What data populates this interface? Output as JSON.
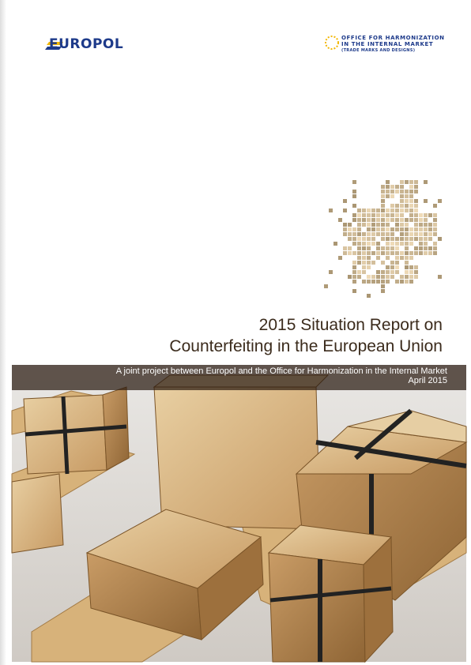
{
  "header": {
    "europol_logo": "EUROPOL",
    "ohim_logo": [
      "OFFICE FOR HARMONIZATION",
      "IN THE INTERNAL MARKET",
      "(TRADE MARKS AND DESIGNS)"
    ]
  },
  "title": [
    "2015 Situation Report on",
    "Counterfeiting in the European Union"
  ],
  "subtitle": "A joint project between Europol and the Office for Harmonization in the Internal Market",
  "date": "April 2015"
}
